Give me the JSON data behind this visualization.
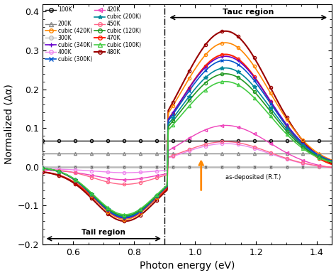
{
  "x_min": 0.5,
  "x_max": 1.45,
  "y_min": -0.2,
  "y_max": 0.42,
  "xlabel": "Photon energy (eV)",
  "ylabel": "Normalized (Δα)",
  "xticks": [
    0.6,
    0.8,
    1.0,
    1.2,
    1.4
  ],
  "yticks": [
    -0.2,
    -0.1,
    0.0,
    0.1,
    0.2,
    0.3,
    0.4
  ],
  "dashed_line_x": 0.9,
  "tail_region_label": "Tail region",
  "tauc_region_label": "Tauc region",
  "as_deposited_label": "as-deposited (R.T.)",
  "normal_series": [
    {
      "label": "100K",
      "color": "#111111",
      "marker": "o",
      "lw": 1.0,
      "flat": 0.068
    },
    {
      "label": "200K",
      "color": "#888888",
      "marker": "^",
      "lw": 1.0,
      "flat": 0.035
    },
    {
      "label": "300K",
      "color": "#bbbbbb",
      "marker": "o",
      "lw": 1.0,
      "flat": 0.0
    },
    {
      "label": "400K",
      "color": "#ee88ee",
      "marker": "o",
      "lw": 1.0,
      "flat": -0.005,
      "peak": 0.065,
      "trough": 0.01
    },
    {
      "label": "420K",
      "color": "#ee44bb",
      "marker": "<",
      "lw": 1.0,
      "flat": -0.008,
      "peak": 0.115,
      "trough": 0.025
    },
    {
      "label": "450K",
      "color": "#ff6688",
      "marker": "o",
      "lw": 1.0,
      "flat": -0.005,
      "peak": 0.07,
      "trough": 0.04
    },
    {
      "label": "470K",
      "color": "#ff2200",
      "marker": "o",
      "lw": 1.5,
      "flat": -0.01,
      "peak": 0.3,
      "trough": 0.12
    },
    {
      "label": "480K",
      "color": "#990000",
      "marker": "o",
      "lw": 1.5,
      "flat": -0.01,
      "peak": 0.36,
      "trough": 0.13
    }
  ],
  "cubic_series": [
    {
      "label": "cubic (420K)",
      "color": "#ff8800",
      "marker": "o",
      "lw": 1.2,
      "peak": 0.32,
      "trough": 0.135
    },
    {
      "label": "cubic (340K)",
      "color": "#6600cc",
      "marker": "+",
      "lw": 1.2,
      "peak": 0.285,
      "trough": 0.132
    },
    {
      "label": "cubic (300K)",
      "color": "#0055cc",
      "marker": "x",
      "lw": 1.2,
      "peak": 0.275,
      "trough": 0.13
    },
    {
      "label": "cubic (200K)",
      "color": "#008899",
      "marker": "*",
      "lw": 1.2,
      "peak": 0.255,
      "trough": 0.128
    },
    {
      "label": "cubic (120K)",
      "color": "#229922",
      "marker": "o",
      "lw": 1.2,
      "peak": 0.24,
      "trough": 0.126
    },
    {
      "label": "cubic (100K)",
      "color": "#44cc44",
      "marker": "^",
      "lw": 1.2,
      "peak": 0.22,
      "trough": 0.123
    }
  ]
}
